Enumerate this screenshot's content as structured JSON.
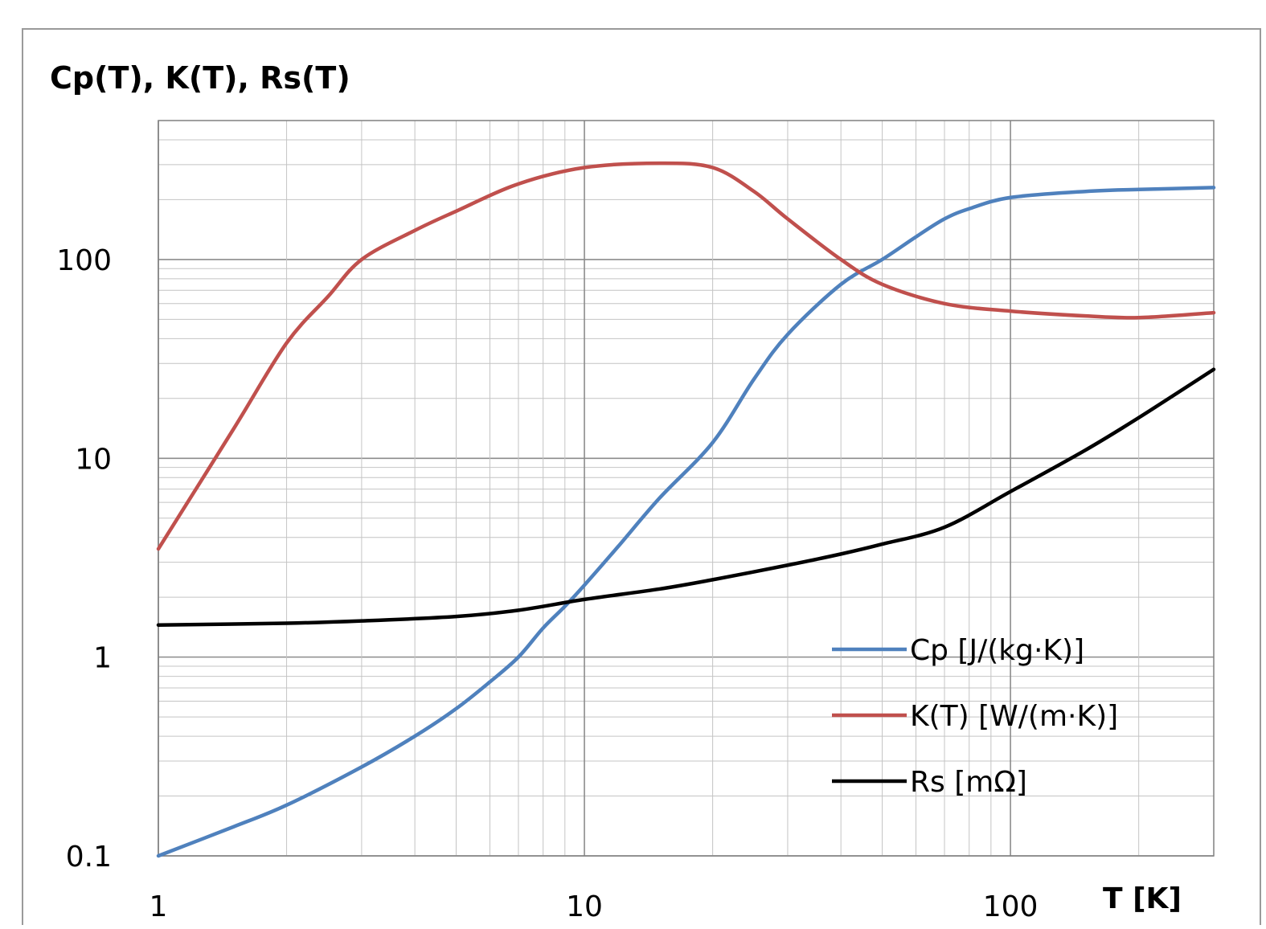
{
  "chart_data": {
    "type": "line",
    "title": "Cp(T), K(T), Rs(T)",
    "xlabel": "T [K]",
    "ylabel": "",
    "x_scale": "log",
    "y_scale": "log",
    "xlim": [
      1,
      300
    ],
    "ylim": [
      0.1,
      500
    ],
    "x_ticks": [
      1,
      10,
      100
    ],
    "x_tick_labels": [
      "1",
      "10",
      "100"
    ],
    "y_ticks": [
      0.1,
      1,
      10,
      100
    ],
    "y_tick_labels": [
      "0.1",
      "1",
      "10",
      "100"
    ],
    "grid": true,
    "legend_position": "bottom-right",
    "series": [
      {
        "name": "Cp [J/(kg·K)]",
        "color": "#4f81bd",
        "points": [
          [
            1,
            0.1
          ],
          [
            1.5,
            0.14
          ],
          [
            2,
            0.18
          ],
          [
            3,
            0.28
          ],
          [
            4,
            0.4
          ],
          [
            5,
            0.55
          ],
          [
            6,
            0.75
          ],
          [
            7,
            1.0
          ],
          [
            8,
            1.4
          ],
          [
            9,
            1.8
          ],
          [
            10,
            2.3
          ],
          [
            12,
            3.6
          ],
          [
            15,
            6.3
          ],
          [
            20,
            12
          ],
          [
            25,
            25
          ],
          [
            30,
            42
          ],
          [
            40,
            75
          ],
          [
            50,
            100
          ],
          [
            60,
            130
          ],
          [
            70,
            160
          ],
          [
            80,
            180
          ],
          [
            100,
            205
          ],
          [
            150,
            220
          ],
          [
            200,
            225
          ],
          [
            300,
            230
          ]
        ]
      },
      {
        "name": "K(T) [W/(m·K)]",
        "color": "#c0504d",
        "points": [
          [
            1,
            3.5
          ],
          [
            1.5,
            14
          ],
          [
            2,
            38
          ],
          [
            2.5,
            65
          ],
          [
            3,
            100
          ],
          [
            4,
            140
          ],
          [
            5,
            175
          ],
          [
            7,
            240
          ],
          [
            10,
            290
          ],
          [
            15,
            305
          ],
          [
            20,
            290
          ],
          [
            25,
            220
          ],
          [
            30,
            160
          ],
          [
            40,
            100
          ],
          [
            50,
            75
          ],
          [
            70,
            60
          ],
          [
            100,
            55
          ],
          [
            150,
            52
          ],
          [
            200,
            51
          ],
          [
            300,
            54
          ]
        ]
      },
      {
        "name": "Rs [mΩ]",
        "color": "#000000",
        "points": [
          [
            1,
            1.45
          ],
          [
            2,
            1.48
          ],
          [
            3,
            1.52
          ],
          [
            5,
            1.6
          ],
          [
            7,
            1.72
          ],
          [
            10,
            1.95
          ],
          [
            15,
            2.2
          ],
          [
            20,
            2.45
          ],
          [
            30,
            2.9
          ],
          [
            40,
            3.3
          ],
          [
            50,
            3.7
          ],
          [
            70,
            4.5
          ],
          [
            100,
            6.8
          ],
          [
            150,
            11
          ],
          [
            200,
            16
          ],
          [
            300,
            28
          ]
        ]
      }
    ]
  }
}
